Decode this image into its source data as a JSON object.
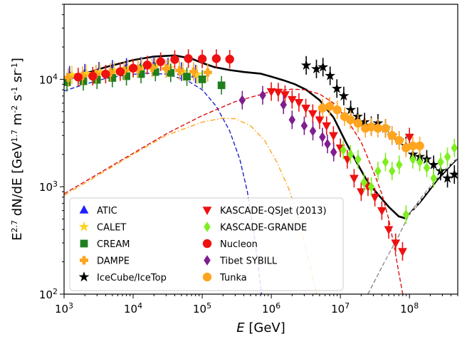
{
  "chart_data": {
    "type": "scatter",
    "title": "",
    "xlabel": "E [GeV]",
    "ylabel": "E^2.7 dN/dE [GeV^1.7 m^-2 s^-1 sr^-1]",
    "xscale": "log",
    "yscale": "log",
    "xlim": [
      1000,
      500000000
    ],
    "ylim": [
      100,
      50000
    ],
    "x_tick_labels": [
      "10^3",
      "10^4",
      "10^5",
      "10^6",
      "10^7",
      "10^8"
    ],
    "y_tick_labels": [
      "10^2",
      "10^3",
      "10^4"
    ],
    "legend_position": "lower-left",
    "series": [
      {
        "name": "ATIC",
        "marker": "triangle-up",
        "color": "#1f1fff",
        "points": [
          [
            1200,
            10900
          ],
          [
            2000,
            11400
          ],
          [
            3200,
            11900
          ],
          [
            5000,
            12400
          ],
          [
            8000,
            12900
          ],
          [
            13000,
            13200
          ],
          [
            20000,
            13400
          ],
          [
            32000,
            13000
          ],
          [
            50000,
            11800
          ],
          [
            80000,
            11200
          ]
        ]
      },
      {
        "name": "CALET",
        "marker": "star",
        "color": "#ffd21f",
        "points": [
          [
            1300,
            11000
          ],
          [
            2100,
            11300
          ],
          [
            3300,
            11700
          ],
          [
            5300,
            12100
          ],
          [
            8400,
            12600
          ],
          [
            13300,
            12900
          ],
          [
            21000,
            13100
          ],
          [
            33000,
            12700
          ],
          [
            53000,
            11800
          ],
          [
            84000,
            11100
          ]
        ]
      },
      {
        "name": "CREAM",
        "marker": "square",
        "color": "#1f7f1f",
        "points": [
          [
            1100,
            9400
          ],
          [
            1900,
            9600
          ],
          [
            3000,
            9900
          ],
          [
            5000,
            10300
          ],
          [
            8000,
            10700
          ],
          [
            13000,
            11200
          ],
          [
            21000,
            11700
          ],
          [
            35000,
            11500
          ],
          [
            60000,
            10600
          ],
          [
            100000,
            10000
          ],
          [
            190000,
            8800
          ]
        ]
      },
      {
        "name": "DAMPE",
        "marker": "plus",
        "color": "#ffa51f",
        "points": [
          [
            1150,
            10400
          ],
          [
            1850,
            10800
          ],
          [
            2900,
            11200
          ],
          [
            4700,
            11600
          ],
          [
            7400,
            12000
          ],
          [
            11800,
            12500
          ],
          [
            18800,
            12800
          ],
          [
            30000,
            12600
          ],
          [
            47000,
            12100
          ],
          [
            75000,
            11800
          ],
          [
            120000,
            11600
          ]
        ]
      },
      {
        "name": "IceCube/IceTop",
        "marker": "star",
        "color": "#000000",
        "points": [
          [
            3200000,
            13500
          ],
          [
            4500000,
            12500
          ],
          [
            5600000,
            13000
          ],
          [
            7100000,
            10800
          ],
          [
            8900000,
            8200
          ],
          [
            11200000,
            7000
          ],
          [
            14100000,
            5200
          ],
          [
            17800000,
            4500
          ],
          [
            22400000,
            4000
          ],
          [
            28000000,
            3700
          ],
          [
            35000000,
            3900
          ],
          [
            45000000,
            3500
          ],
          [
            56000000,
            3000
          ],
          [
            71000000,
            2700
          ],
          [
            89000000,
            2400
          ],
          [
            112000000,
            2000
          ],
          [
            141000000,
            1900
          ],
          [
            178000000,
            1800
          ],
          [
            224000000,
            1600
          ],
          [
            282000000,
            1400
          ],
          [
            355000000,
            1200
          ],
          [
            447000000,
            1300
          ]
        ]
      },
      {
        "name": "KASCADE-QSJet (2013)",
        "marker": "triangle-down",
        "color": "#ee1111",
        "points": [
          [
            1000000,
            7700
          ],
          [
            1260000,
            7600
          ],
          [
            1580000,
            7200
          ],
          [
            2000000,
            6500
          ],
          [
            2510000,
            6100
          ],
          [
            3160000,
            5400
          ],
          [
            3980000,
            4800
          ],
          [
            5010000,
            4200
          ],
          [
            6310000,
            3700
          ],
          [
            7940000,
            3000
          ],
          [
            10000000,
            2300
          ],
          [
            12600000,
            1800
          ],
          [
            15800000,
            1200
          ],
          [
            20000000,
            900
          ],
          [
            25100000,
            1000
          ],
          [
            31600000,
            800
          ],
          [
            39800000,
            600
          ],
          [
            50100000,
            400
          ],
          [
            63100000,
            300
          ],
          [
            79400000,
            250
          ],
          [
            100000000,
            2900
          ]
        ]
      },
      {
        "name": "KASCADE-GRANDE",
        "marker": "diamond",
        "color": "#7fee1f",
        "points": [
          [
            11000000,
            2200
          ],
          [
            14000000,
            2000
          ],
          [
            18000000,
            1800
          ],
          [
            22000000,
            1100
          ],
          [
            28000000,
            1000
          ],
          [
            35000000,
            1400
          ],
          [
            45000000,
            1700
          ],
          [
            56000000,
            1400
          ],
          [
            71000000,
            1600
          ],
          [
            89000000,
            550
          ],
          [
            112000000,
            1800
          ],
          [
            141000000,
            1700
          ],
          [
            178000000,
            1500
          ],
          [
            224000000,
            1200
          ],
          [
            282000000,
            1700
          ],
          [
            355000000,
            1900
          ],
          [
            447000000,
            2300
          ]
        ]
      },
      {
        "name": "Nucleon",
        "marker": "circle",
        "color": "#ee1111",
        "points": [
          [
            1600,
            10500
          ],
          [
            2600,
            10700
          ],
          [
            4000,
            11200
          ],
          [
            6500,
            11800
          ],
          [
            10000,
            12700
          ],
          [
            16000,
            13600
          ],
          [
            25000,
            14600
          ],
          [
            40000,
            15300
          ],
          [
            63000,
            15600
          ],
          [
            100000,
            15500
          ],
          [
            160000,
            15600
          ],
          [
            250000,
            15400
          ]
        ]
      },
      {
        "name": "Tibet SYBILL",
        "marker": "diamond",
        "color": "#7f1f8f",
        "points": [
          [
            380000,
            6400
          ],
          [
            750000,
            7100
          ],
          [
            1500000,
            5800
          ],
          [
            2000000,
            4200
          ],
          [
            3000000,
            3700
          ],
          [
            4000000,
            3300
          ],
          [
            5500000,
            2900
          ],
          [
            6500000,
            2500
          ],
          [
            8000000,
            2100
          ]
        ]
      },
      {
        "name": "Tunka",
        "marker": "circle",
        "color": "#ffa51f",
        "points": [
          [
            5500000,
            5400
          ],
          [
            7000000,
            5600
          ],
          [
            9000000,
            5200
          ],
          [
            11500000,
            4500
          ],
          [
            14000000,
            4200
          ],
          [
            18000000,
            3900
          ],
          [
            23000000,
            3500
          ],
          [
            28000000,
            3600
          ],
          [
            35000000,
            3500
          ],
          [
            45000000,
            3500
          ],
          [
            56000000,
            3000
          ],
          [
            71000000,
            2700
          ],
          [
            89000000,
            2300
          ],
          [
            112000000,
            2400
          ],
          [
            141000000,
            2400
          ]
        ]
      }
    ],
    "curves": [
      {
        "style": "solid",
        "color": "#000000",
        "points": [
          [
            1000,
            9700
          ],
          [
            2000,
            11300
          ],
          [
            4000,
            13000
          ],
          [
            10000,
            15100
          ],
          [
            20000,
            16300
          ],
          [
            40000,
            16700
          ],
          [
            70000,
            15600
          ],
          [
            100000,
            14200
          ],
          [
            150000,
            13000
          ],
          [
            250000,
            12200
          ],
          [
            400000,
            11700
          ],
          [
            700000,
            11300
          ],
          [
            1000000,
            10600
          ],
          [
            1500000,
            9800
          ],
          [
            2200000,
            9000
          ],
          [
            3200000,
            8000
          ],
          [
            5000000,
            6400
          ],
          [
            8000000,
            4400
          ],
          [
            12000000,
            2600
          ],
          [
            18000000,
            1600
          ],
          [
            25000000,
            1100
          ],
          [
            35000000,
            850
          ],
          [
            50000000,
            650
          ],
          [
            70000000,
            530
          ],
          [
            85000000,
            510
          ],
          [
            100000000,
            560
          ],
          [
            150000000,
            750
          ],
          [
            250000000,
            1150
          ],
          [
            400000000,
            1600
          ],
          [
            500000000,
            1850
          ]
        ]
      },
      {
        "style": "dashed",
        "color": "#1f1fcc",
        "points": [
          [
            1000,
            7800
          ],
          [
            2000,
            9000
          ],
          [
            4000,
            10200
          ],
          [
            8000,
            11000
          ],
          [
            15000,
            11400
          ],
          [
            30000,
            11200
          ],
          [
            60000,
            9800
          ],
          [
            100000,
            8000
          ],
          [
            160000,
            5600
          ],
          [
            250000,
            3300
          ],
          [
            350000,
            1800
          ],
          [
            450000,
            900
          ],
          [
            550000,
            400
          ],
          [
            650000,
            180
          ],
          [
            720000,
            100
          ]
        ]
      },
      {
        "style": "dashed",
        "color": "#dd1111",
        "points": [
          [
            1000,
            860
          ],
          [
            3000,
            1300
          ],
          [
            10000,
            2050
          ],
          [
            30000,
            3100
          ],
          [
            100000,
            4600
          ],
          [
            300000,
            6200
          ],
          [
            1000000,
            7700
          ],
          [
            2000000,
            8100
          ],
          [
            3000000,
            8000
          ],
          [
            5000000,
            7300
          ],
          [
            8000000,
            6000
          ],
          [
            12000000,
            4400
          ],
          [
            20000000,
            2600
          ],
          [
            30000000,
            1400
          ],
          [
            40000000,
            850
          ],
          [
            50000000,
            500
          ],
          [
            60000000,
            280
          ],
          [
            70000000,
            160
          ],
          [
            80000000,
            100
          ]
        ]
      },
      {
        "style": "dashdot",
        "color": "#ffa51f",
        "points": [
          [
            1000,
            830
          ],
          [
            3000,
            1260
          ],
          [
            10000,
            2000
          ],
          [
            30000,
            3000
          ],
          [
            100000,
            4000
          ],
          [
            200000,
            4350
          ],
          [
            300000,
            4300
          ],
          [
            500000,
            3700
          ],
          [
            800000,
            2700
          ],
          [
            1200000,
            1700
          ],
          [
            1800000,
            950
          ],
          [
            2500000,
            500
          ],
          [
            3200000,
            260
          ],
          [
            4000000,
            140
          ],
          [
            4500000,
            100
          ]
        ]
      },
      {
        "style": "dashed",
        "color": "#888888",
        "points": [
          [
            25000000,
            100
          ],
          [
            40000000,
            180
          ],
          [
            70000000,
            350
          ],
          [
            100000000,
            560
          ],
          [
            150000000,
            800
          ],
          [
            250000000,
            1200
          ],
          [
            400000000,
            1650
          ],
          [
            500000000,
            1850
          ]
        ]
      },
      {
        "style": "dashed",
        "color": "#ffffff",
        "points": [
          [
            28000000,
            100
          ],
          [
            45000000,
            200
          ],
          [
            75000000,
            360
          ],
          [
            100000000,
            540
          ],
          [
            160000000,
            820
          ],
          [
            260000000,
            1220
          ],
          [
            420000000,
            1680
          ],
          [
            500000000,
            1880
          ]
        ]
      }
    ]
  }
}
